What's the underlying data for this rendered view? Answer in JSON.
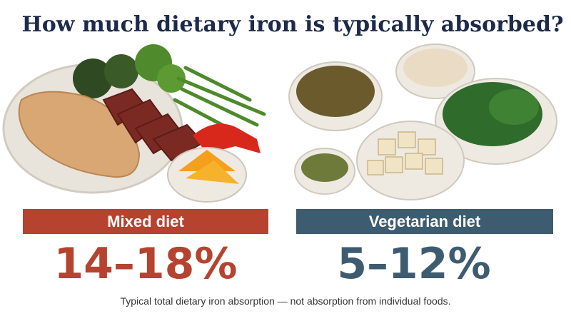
{
  "title": "How much dietary iron is typically absorbed?",
  "panels": [
    {
      "label": "Mixed diet",
      "range": "14–18%"
    },
    {
      "label": "Vegetarian diet",
      "range": "5–12%"
    }
  ],
  "footnote": "Typical total dietary iron absorption — not absorption from individual foods."
}
